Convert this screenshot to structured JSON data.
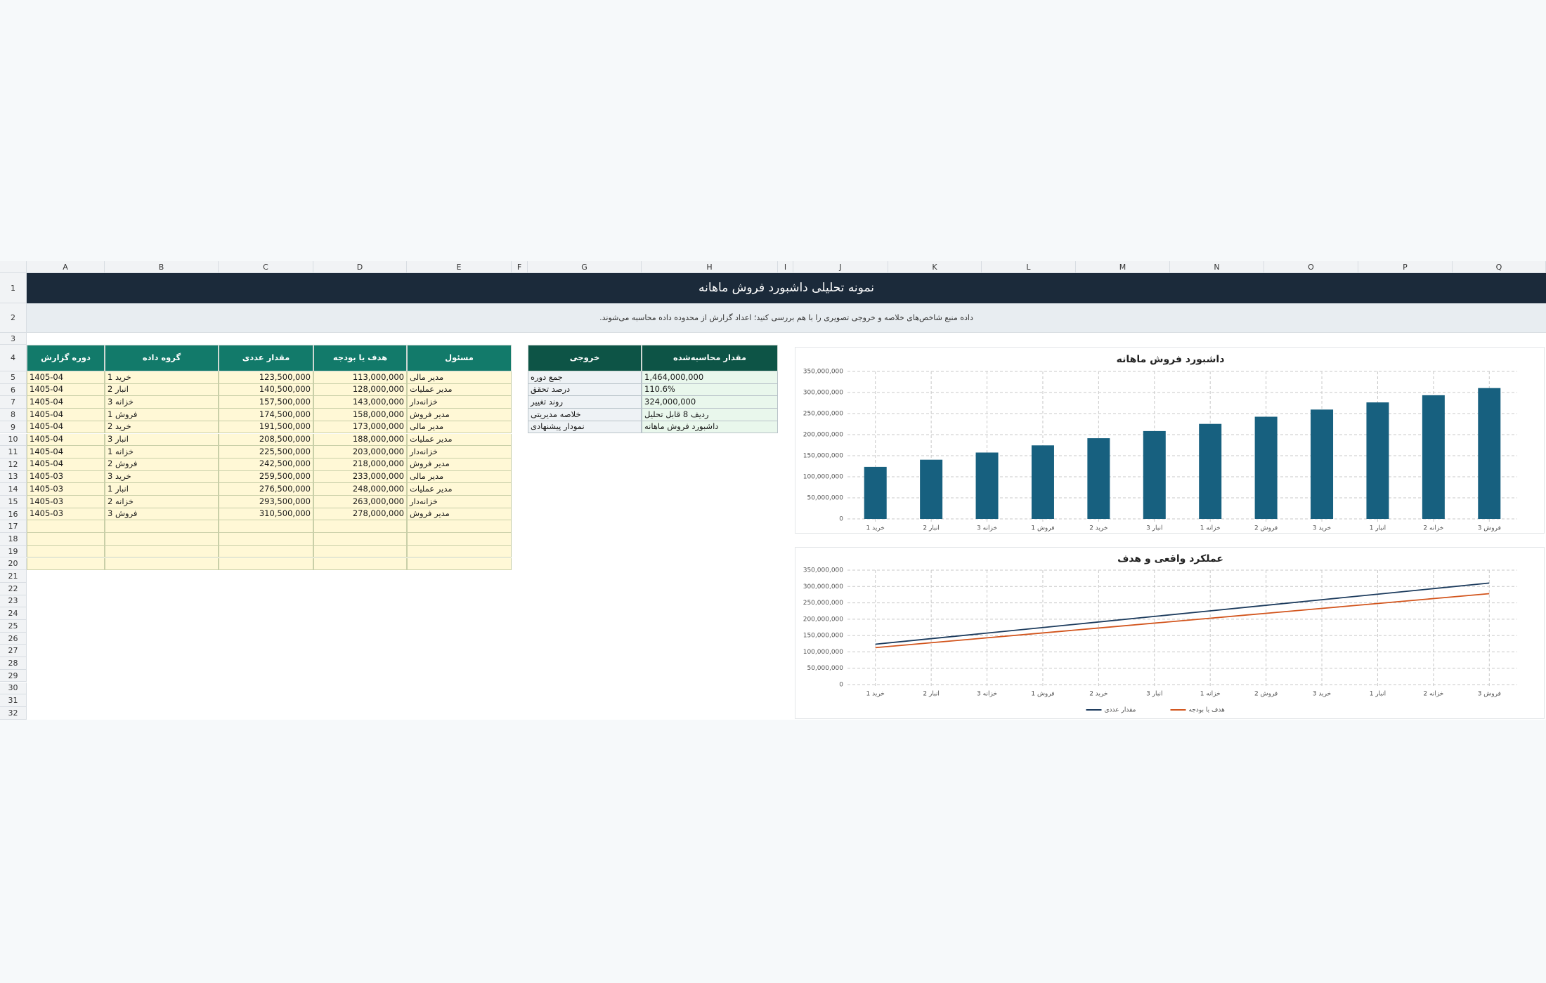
{
  "sheet": {
    "columns": [
      "A",
      "B",
      "C",
      "D",
      "E",
      "F",
      "G",
      "H",
      "I",
      "J",
      "K",
      "L",
      "M",
      "N",
      "O",
      "P",
      "Q"
    ],
    "rows": [
      1,
      2,
      3,
      4,
      5,
      6,
      7,
      8,
      9,
      10,
      11,
      12,
      13,
      14,
      15,
      16,
      17,
      18,
      19,
      20,
      21,
      22,
      23,
      24,
      25,
      26,
      27,
      28,
      29,
      30,
      31,
      32
    ]
  },
  "title": "نمونه تحلیلی داشبورد فروش ماهانه",
  "subtitle": "داده منبع شاخص‌های خلاصه و خروجی تصویری را با هم بررسی کنید؛ اعداد گزارش از محدوده داده محاسبه می‌شوند.",
  "data_table": {
    "headers": [
      "دوره گزارش",
      "گروه داده",
      "مقدار عددی",
      "هدف یا بودجه",
      "مسئول"
    ],
    "rows": [
      [
        "1405-04",
        "خرید 1",
        "123,500,000",
        "113,000,000",
        "مدیر مالی"
      ],
      [
        "1405-04",
        "انبار 2",
        "140,500,000",
        "128,000,000",
        "مدیر عملیات"
      ],
      [
        "1405-04",
        "خزانه 3",
        "157,500,000",
        "143,000,000",
        "خزانه‌دار"
      ],
      [
        "1405-04",
        "فروش 1",
        "174,500,000",
        "158,000,000",
        "مدیر فروش"
      ],
      [
        "1405-04",
        "خرید 2",
        "191,500,000",
        "173,000,000",
        "مدیر مالی"
      ],
      [
        "1405-04",
        "انبار 3",
        "208,500,000",
        "188,000,000",
        "مدیر عملیات"
      ],
      [
        "1405-04",
        "خزانه 1",
        "225,500,000",
        "203,000,000",
        "خزانه‌دار"
      ],
      [
        "1405-04",
        "فروش 2",
        "242,500,000",
        "218,000,000",
        "مدیر فروش"
      ],
      [
        "1405-03",
        "خرید 3",
        "259,500,000",
        "233,000,000",
        "مدیر مالی"
      ],
      [
        "1405-03",
        "انبار 1",
        "276,500,000",
        "248,000,000",
        "مدیر عملیات"
      ],
      [
        "1405-03",
        "خزانه 2",
        "293,500,000",
        "263,000,000",
        "خزانه‌دار"
      ],
      [
        "1405-03",
        "فروش 3",
        "310,500,000",
        "278,000,000",
        "مدیر فروش"
      ]
    ]
  },
  "output_table": {
    "headers": [
      "خروجی",
      "مقدار محاسبه‌شده"
    ],
    "rows": [
      [
        "جمع دوره",
        "1,464,000,000"
      ],
      [
        "درصد تحقق",
        "110.6%"
      ],
      [
        "روند تغییر",
        "324,000,000"
      ],
      [
        "خلاصه مدیریتی",
        "ردیف 8 قابل تحلیل"
      ],
      [
        "نمودار پیشنهادی",
        "داشبورد فروش ماهانه"
      ]
    ]
  },
  "chart_data": [
    {
      "type": "bar",
      "title": "داشبورد فروش ماهانه",
      "categories": [
        "خرید 1",
        "انبار 2",
        "خزانه 3",
        "فروش 1",
        "خرید 2",
        "انبار 3",
        "خزانه 1",
        "فروش 2",
        "خرید 3",
        "انبار 1",
        "خزانه 2",
        "فروش 3"
      ],
      "values": [
        123500000,
        140500000,
        157500000,
        174500000,
        191500000,
        208500000,
        225500000,
        242500000,
        259500000,
        276500000,
        293500000,
        310500000
      ],
      "color": "#17607f",
      "grid": true,
      "ylim": [
        0,
        350000000
      ],
      "yticks": [
        0,
        {
          "value": 50000000,
          "label": "50,000,000"
        },
        {
          "value": 100000000,
          "label": "100,000,000"
        },
        {
          "value": 150000000,
          "label": "150,000,000"
        },
        {
          "value": 200000000,
          "label": "200,000,000"
        },
        {
          "value": 250000000,
          "label": "250,000,000"
        },
        {
          "value": 300000000,
          "label": "300,000,000"
        },
        {
          "value": 350000000,
          "label": "350,000,000"
        }
      ]
    },
    {
      "type": "line",
      "title": "عملکرد واقعی و هدف",
      "categories": [
        "خرید 1",
        "انبار 2",
        "خزانه 3",
        "فروش 1",
        "خرید 2",
        "انبار 3",
        "خزانه 1",
        "فروش 2",
        "خرید 3",
        "انبار 1",
        "خزانه 2",
        "فروش 3"
      ],
      "series": [
        {
          "name": "مقدار عددی",
          "color": "#1b3a5c",
          "values": [
            123500000,
            140500000,
            157500000,
            174500000,
            191500000,
            208500000,
            225500000,
            242500000,
            259500000,
            276500000,
            293500000,
            310500000
          ]
        },
        {
          "name": "هدف یا بودجه",
          "color": "#d2541c",
          "values": [
            113000000,
            128000000,
            143000000,
            158000000,
            173000000,
            188000000,
            203000000,
            218000000,
            233000000,
            248000000,
            263000000,
            278000000
          ]
        }
      ],
      "grid": true,
      "legend": "bottom",
      "ylim": [
        0,
        350000000
      ],
      "yticks": [
        0,
        {
          "value": 50000000,
          "label": "50,000,000"
        },
        {
          "value": 100000000,
          "label": "100,000,000"
        },
        {
          "value": 150000000,
          "label": "150,000,000"
        },
        {
          "value": 200000000,
          "label": "200,000,000"
        },
        {
          "value": 250000000,
          "label": "250,000,000"
        },
        {
          "value": 300000000,
          "label": "300,000,000"
        },
        {
          "value": 350000000,
          "label": "350,000,000"
        }
      ]
    }
  ]
}
